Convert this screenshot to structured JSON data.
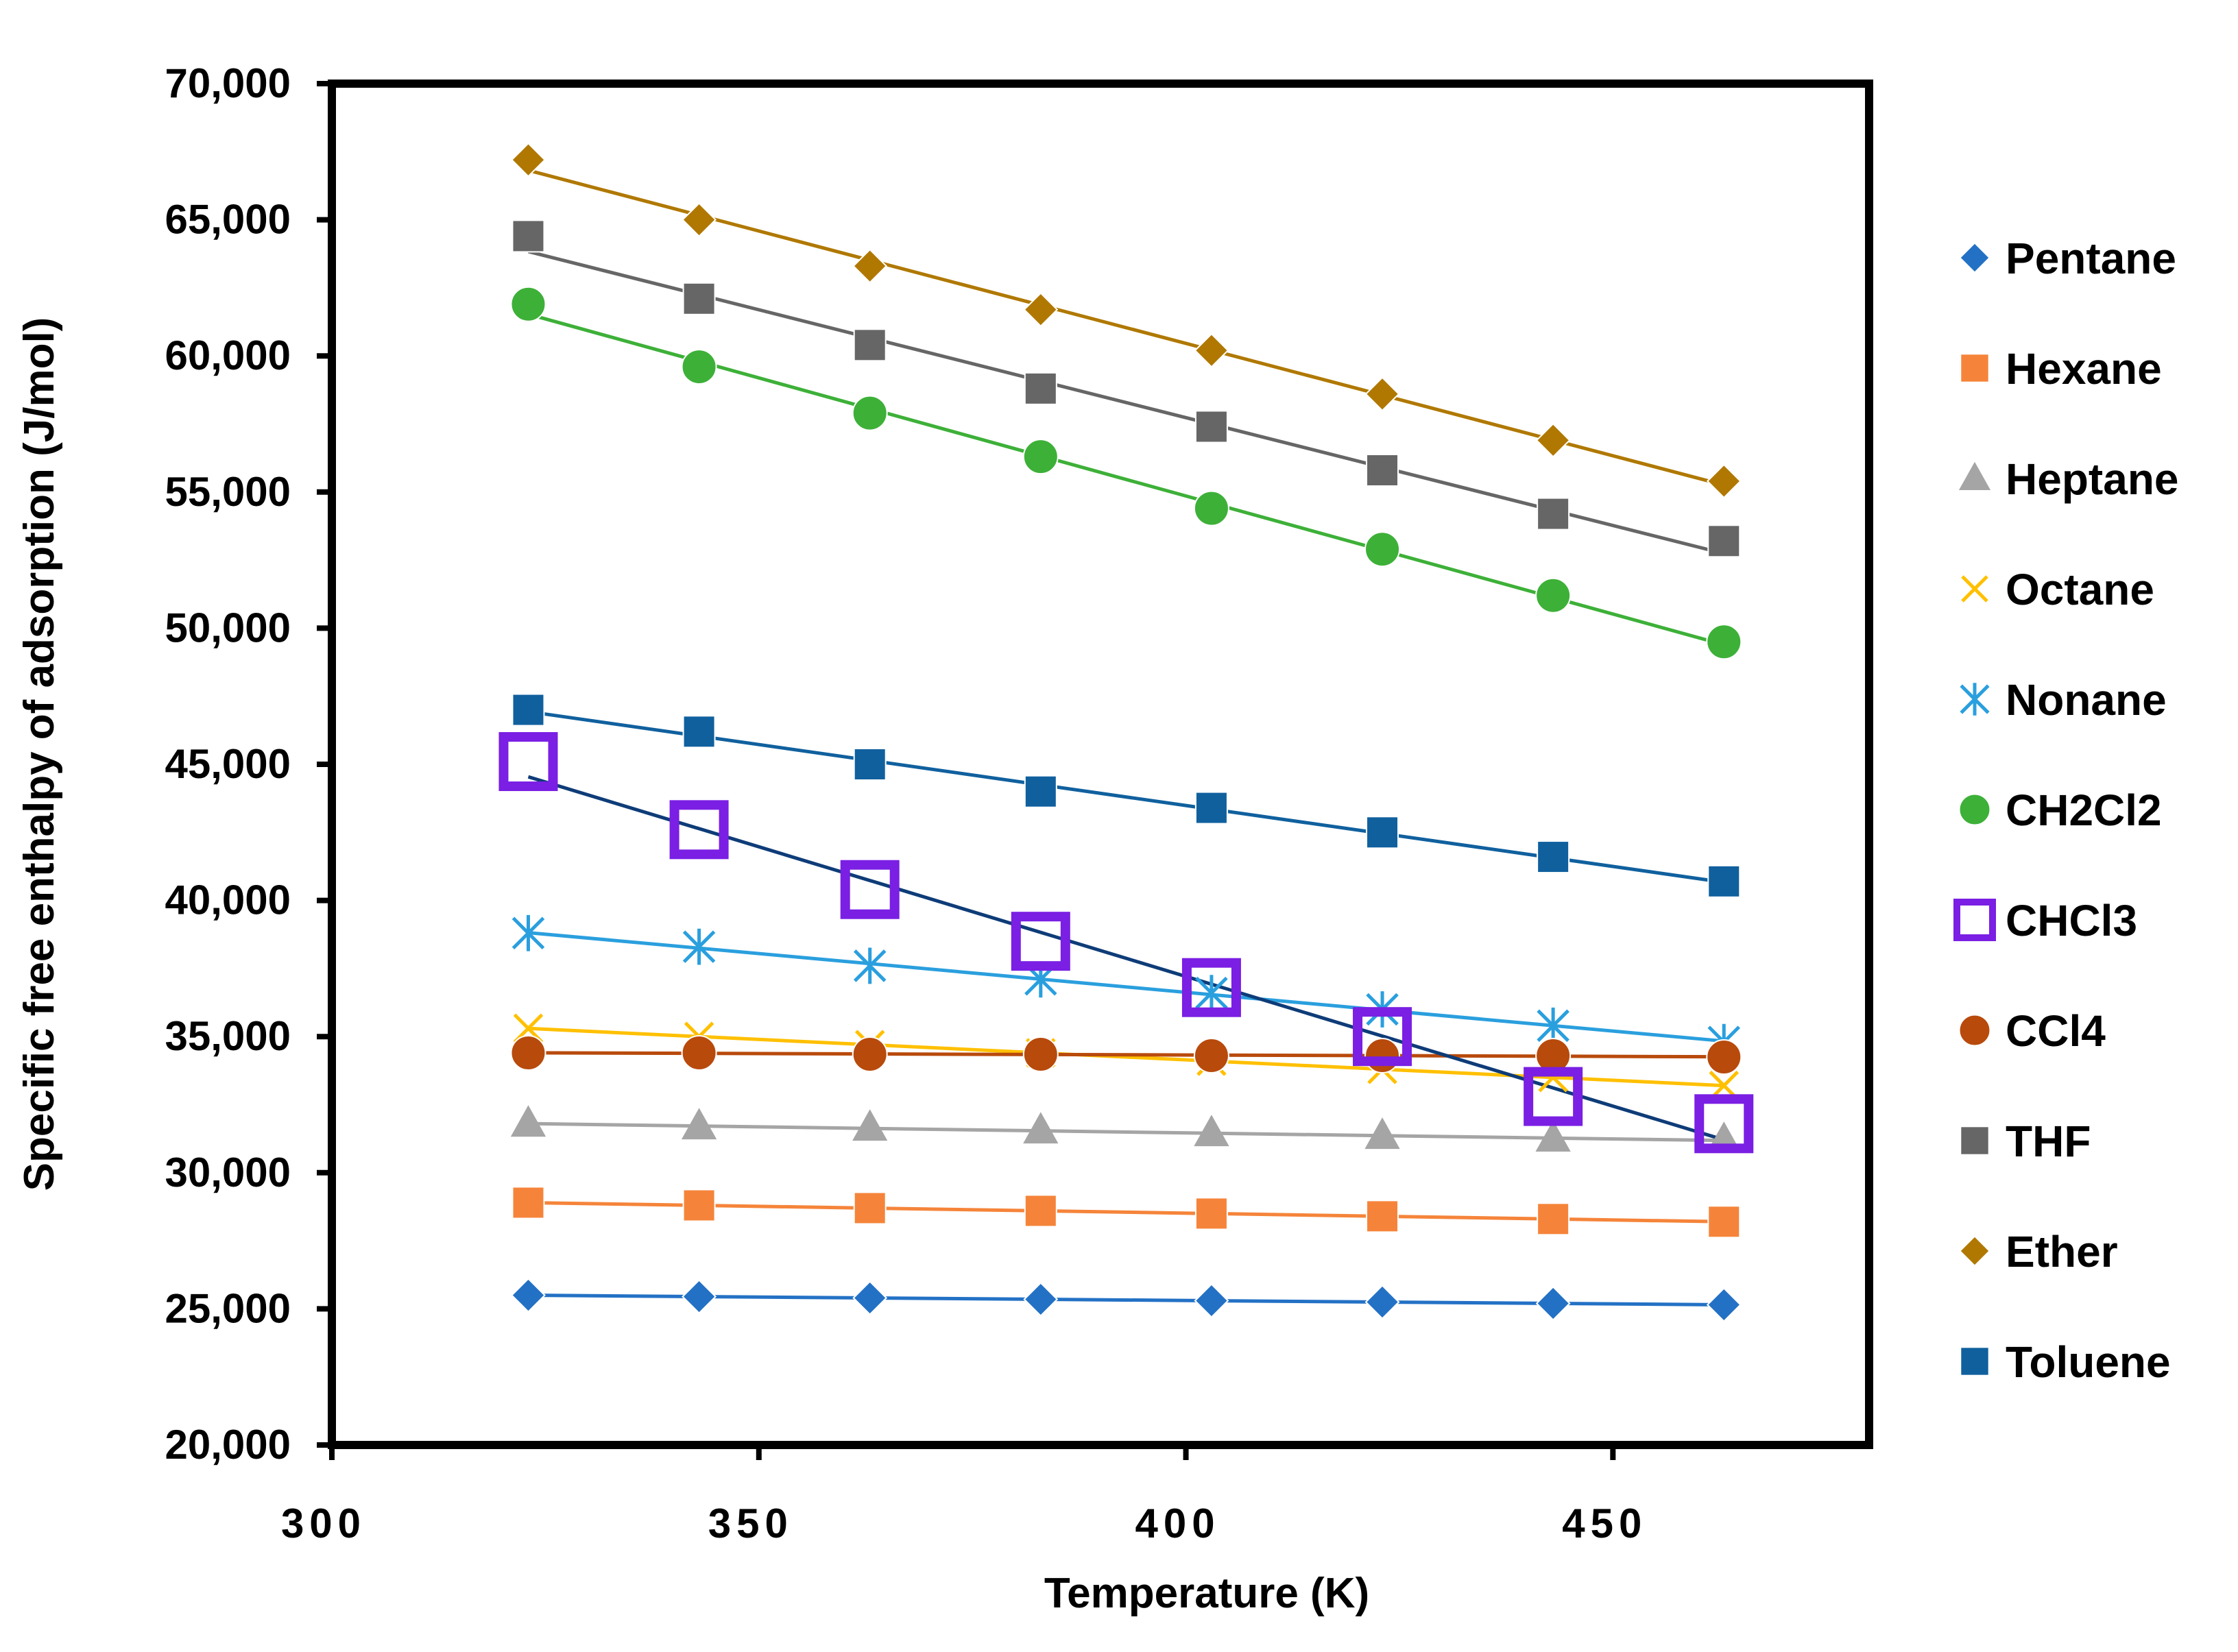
{
  "chart_data": {
    "type": "line",
    "title": "",
    "xlabel": "Temperature (K)",
    "ylabel": "Specific free enthalpy of adsorption (J/mol)",
    "xlim": [
      300,
      480
    ],
    "ylim": [
      20000,
      70000
    ],
    "xticks": [
      300,
      350,
      400,
      450
    ],
    "xtick_labels": [
      "300",
      "350",
      "400",
      "450"
    ],
    "yticks": [
      20000,
      25000,
      30000,
      35000,
      40000,
      45000,
      50000,
      55000,
      60000,
      65000,
      70000
    ],
    "ytick_labels": [
      "20,000",
      "25,000",
      "30,000",
      "35,000",
      "40,000",
      "45,000",
      "50,000",
      "55,000",
      "60,000",
      "65,000",
      "70,000"
    ],
    "legend_position": "right",
    "x": [
      323,
      343,
      363,
      383,
      403,
      423,
      443,
      463
    ],
    "series": [
      {
        "name": "Pentane",
        "marker": "diamond",
        "color": "#2371C5",
        "values": [
          25500,
          25450,
          25400,
          25350,
          25300,
          25250,
          25200,
          25150
        ]
      },
      {
        "name": "Hexane",
        "marker": "square",
        "color": "#F5843A",
        "values": [
          28900,
          28800,
          28700,
          28600,
          28500,
          28400,
          28300,
          28200
        ]
      },
      {
        "name": "Heptane",
        "marker": "triangle",
        "color": "#A5A5A5",
        "values": [
          31800,
          31700,
          31650,
          31550,
          31450,
          31350,
          31250,
          31200
        ]
      },
      {
        "name": "Octane",
        "marker": "x",
        "color": "#FFC000",
        "values": [
          35300,
          35000,
          34700,
          34400,
          34100,
          33800,
          33500,
          33200
        ]
      },
      {
        "name": "Nonane",
        "marker": "star",
        "color": "#2A9FDE",
        "values": [
          38800,
          38300,
          37600,
          37100,
          36600,
          36000,
          35400,
          34800
        ]
      },
      {
        "name": "CH2Cl2",
        "marker": "circle",
        "color": "#3DB038",
        "values": [
          61900,
          59600,
          57900,
          56300,
          54400,
          52900,
          51200,
          49500
        ]
      },
      {
        "name": "CHCl3",
        "marker": "open-square",
        "color": "#7A1FE3",
        "values": [
          45100,
          42600,
          40400,
          38500,
          36800,
          35000,
          32800,
          31800
        ]
      },
      {
        "name": "CCl4",
        "marker": "circle",
        "color": "#B84A0C",
        "values": [
          34400,
          34400,
          34350,
          34350,
          34300,
          34300,
          34300,
          34250
        ]
      },
      {
        "name": "THF",
        "marker": "square",
        "color": "#666666",
        "values": [
          64400,
          62100,
          60400,
          58800,
          57400,
          55800,
          54200,
          53200
        ]
      },
      {
        "name": "Ether",
        "marker": "diamond",
        "color": "#B07800",
        "values": [
          67200,
          65000,
          63300,
          61700,
          60200,
          58600,
          56900,
          55400
        ]
      },
      {
        "name": "Toluene",
        "marker": "square",
        "color": "#10609E",
        "values": [
          47000,
          46200,
          45000,
          44000,
          43400,
          42500,
          41600,
          40700
        ]
      }
    ],
    "trendline_colors": {
      "Pentane": "#2371C5",
      "Hexane": "#F5843A",
      "Heptane": "#A5A5A5",
      "Octane": "#FFC000",
      "Nonane": "#2A9FDE",
      "CH2Cl2": "#3DB038",
      "CHCl3": "#0E3C78",
      "CCl4": "#B84A0C",
      "THF": "#666666",
      "Ether": "#B07800",
      "Toluene": "#10609E"
    }
  }
}
